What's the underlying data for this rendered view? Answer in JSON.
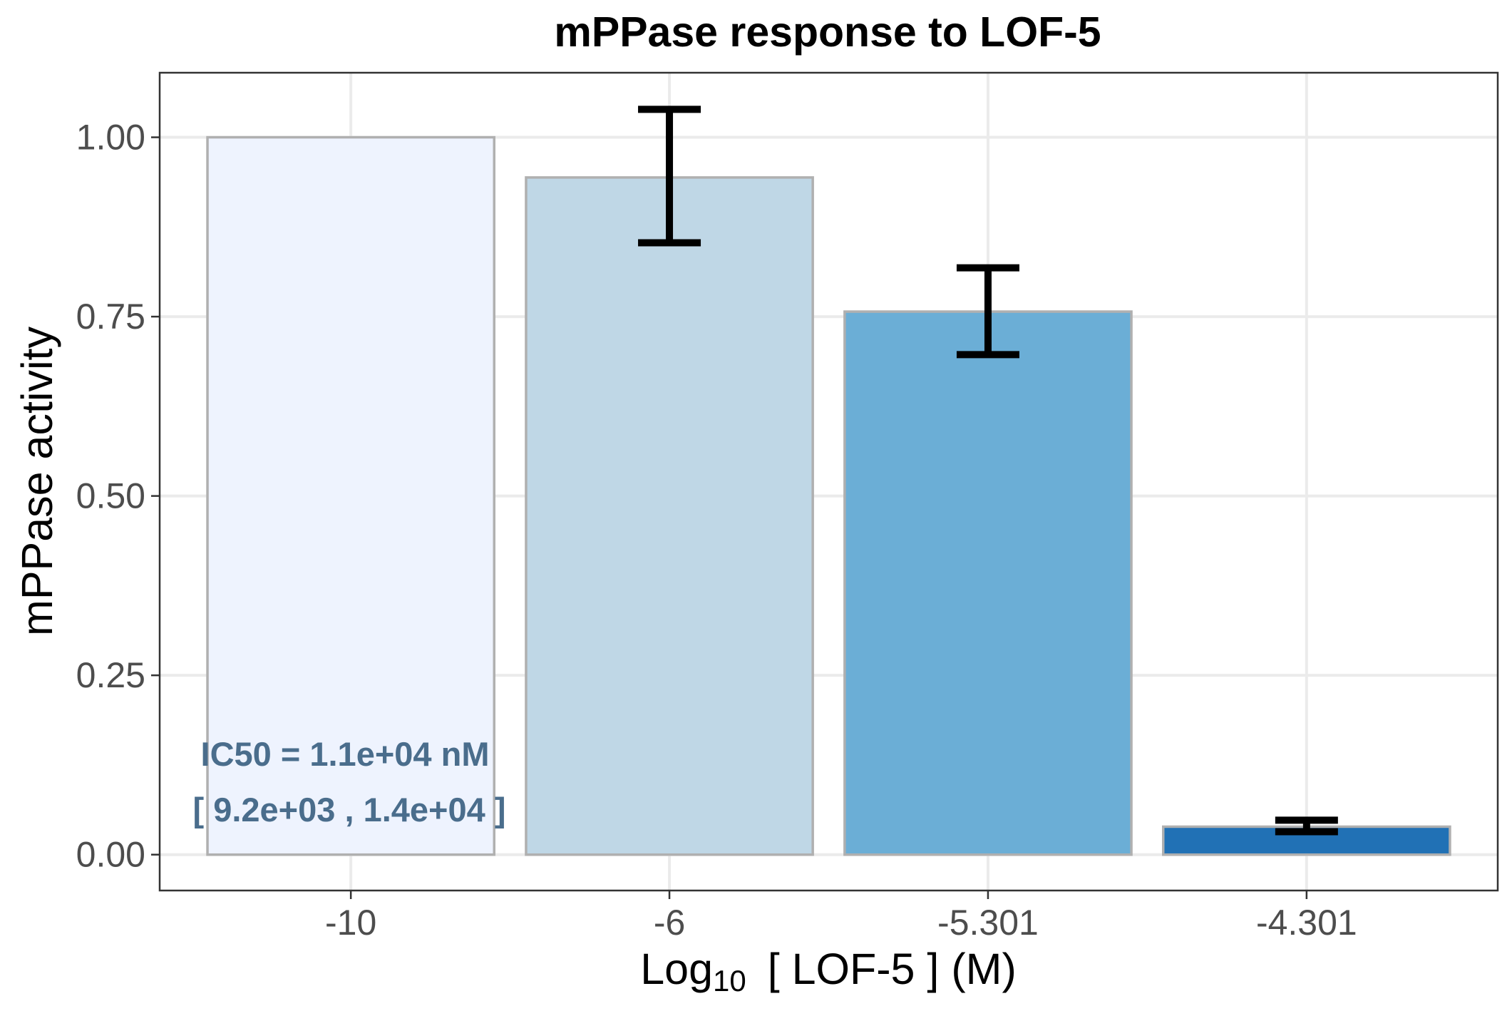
{
  "chart_data": {
    "type": "bar",
    "title": "mPPase response to LOF-5",
    "ylabel": "mPPase activity",
    "xlabel": {
      "prefix": "Log",
      "subscript": "10",
      "suffix": "[ LOF-5 ] (M)"
    },
    "categories": [
      "-10",
      "-6",
      "-5.301",
      "-4.301"
    ],
    "values": [
      1.0,
      0.944,
      0.757,
      0.039
    ],
    "error_low": [
      null,
      0.853,
      0.697,
      0.032
    ],
    "error_high": [
      null,
      1.039,
      0.818,
      0.048
    ],
    "bar_colors": [
      "#eef3fe",
      "#bfd7e6",
      "#6baed6",
      "#2171b5"
    ],
    "ylim": [
      -0.05,
      1.09
    ],
    "yticks": [
      0.0,
      0.25,
      0.5,
      0.75,
      1.0
    ],
    "ytick_labels": [
      "0.00",
      "0.25",
      "0.50",
      "0.75",
      "1.00"
    ],
    "grid": true,
    "annotations": [
      "IC50 = 1.1e+04 nM",
      "[ 9.2e+03 , 1.4e+04 ]"
    ]
  }
}
